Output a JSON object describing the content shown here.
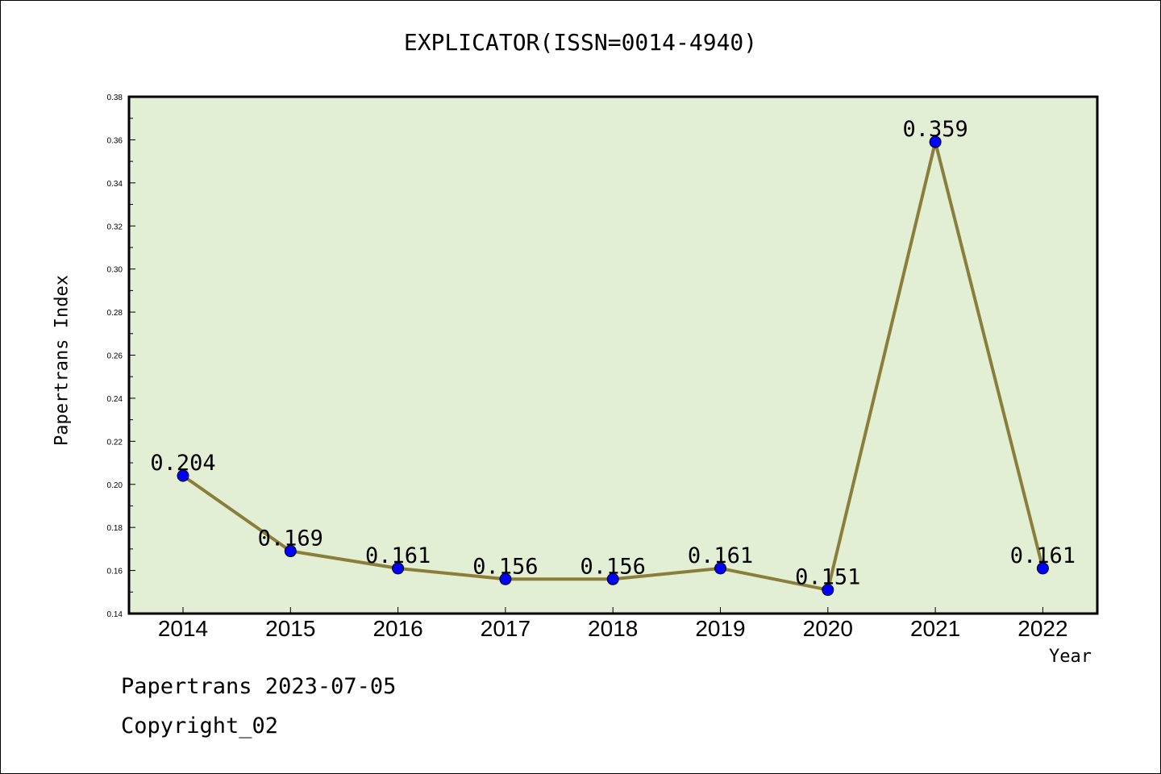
{
  "title": "EXPLICATOR(ISSN=0014-4940)",
  "footer": {
    "date_line": "Papertrans 2023-07-05",
    "copyright": "Copyright_02"
  },
  "colors": {
    "plot_background": "#e2efd5",
    "line": "#8b7d3a",
    "marker": "#0000ff"
  },
  "chart_data": {
    "type": "line",
    "title": "EXPLICATOR(ISSN=0014-4940)",
    "xlabel": "Year",
    "ylabel": "Papertrans Index",
    "categories": [
      "2014",
      "2015",
      "2016",
      "2017",
      "2018",
      "2019",
      "2020",
      "2021",
      "2022"
    ],
    "series": [
      {
        "values": [
          0.204,
          0.169,
          0.161,
          0.156,
          0.156,
          0.161,
          0.151,
          0.359,
          0.161
        ],
        "data_labels": [
          "0.204",
          "0.169",
          "0.161",
          "0.156",
          "0.156",
          "0.161",
          "0.151",
          "0.359",
          "0.161"
        ]
      }
    ],
    "ylim": [
      0.14,
      0.38
    ],
    "y_ticks": [
      "0.14",
      "0.16",
      "0.18",
      "0.20",
      "0.22",
      "0.24",
      "0.26",
      "0.28",
      "0.30",
      "0.32",
      "0.34",
      "0.36",
      "0.38"
    ],
    "grid": false,
    "legend": "none"
  }
}
